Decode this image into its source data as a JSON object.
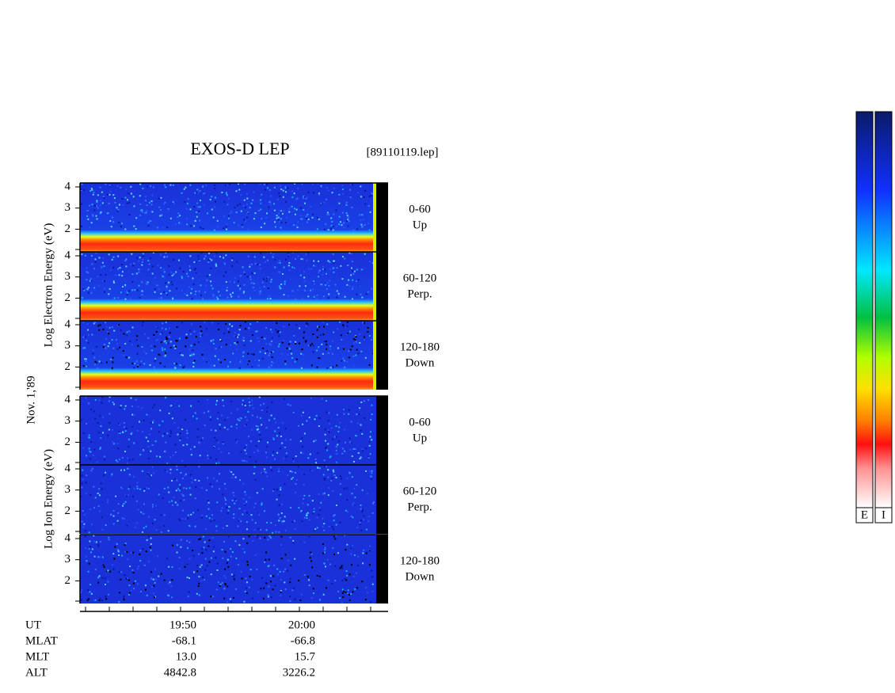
{
  "header": {
    "title": "EXOS-D LEP",
    "file": "[89110119.lep]"
  },
  "date": "Nov. 1,'89",
  "groups": [
    {
      "axis_label": "Log  Electron  Energy (eV)",
      "panels": [
        {
          "range": "0-60",
          "direction": "Up"
        },
        {
          "range": "60-120",
          "direction": "Perp."
        },
        {
          "range": "120-180",
          "direction": "Down"
        }
      ]
    },
    {
      "axis_label": "Log  Ion  Energy (eV)",
      "panels": [
        {
          "range": "0-60",
          "direction": "Up"
        },
        {
          "range": "60-120",
          "direction": "Perp."
        },
        {
          "range": "120-180",
          "direction": "Down"
        }
      ]
    }
  ],
  "energy_ticks": [
    2,
    3,
    4
  ],
  "time_axis": {
    "ticks": [
      "19:50",
      "20:00"
    ]
  },
  "ephemeris": {
    "labels": [
      "UT",
      "MLAT",
      "MLT",
      "ALT"
    ],
    "columns": [
      [
        "-68.1",
        "13.0",
        "4842.8"
      ],
      [
        "-66.8",
        "15.7",
        "3226.2"
      ]
    ]
  },
  "colorbars": [
    "E",
    "I"
  ]
}
